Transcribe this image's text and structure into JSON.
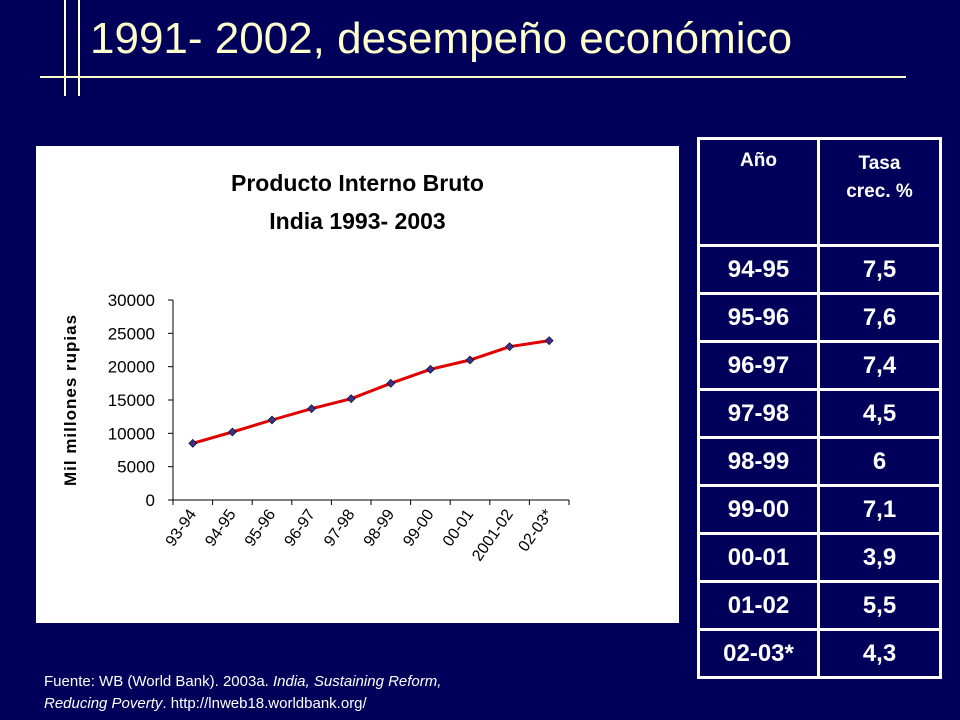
{
  "title": "1991- 2002, desempeño económico",
  "colors": {
    "background": "#00005a",
    "title": "#ffffcc",
    "line": "#e00000",
    "marker": "#3b2f8f"
  },
  "chart_data": {
    "type": "line",
    "title": "Producto Interno Bruto",
    "subtitle": "India 1993- 2003",
    "xlabel": "",
    "ylabel": "Mil millones rupias",
    "ylim": [
      0,
      30000
    ],
    "yticks": [
      "0",
      "5000",
      "10000",
      "15000",
      "20000",
      "25000",
      "30000"
    ],
    "categories": [
      "93-94",
      "94-95",
      "95-96",
      "96-97",
      "97-98",
      "98-99",
      "99-00",
      "00-01",
      "2001-02",
      "02-03*"
    ],
    "values": [
      8500,
      10200,
      12000,
      13700,
      15200,
      17500,
      19600,
      21000,
      23000,
      23900
    ],
    "grid": false,
    "legend": "none"
  },
  "table": {
    "headers": [
      "Año",
      "Tasa crec. %"
    ],
    "rows": [
      {
        "year": "94-95",
        "rate": "7,5"
      },
      {
        "year": "95-96",
        "rate": "7,6"
      },
      {
        "year": "96-97",
        "rate": "7,4"
      },
      {
        "year": "97-98",
        "rate": "4,5"
      },
      {
        "year": "98-99",
        "rate": "6"
      },
      {
        "year": "99-00",
        "rate": "7,1"
      },
      {
        "year": "00-01",
        "rate": "3,9"
      },
      {
        "year": "01-02",
        "rate": "5,5"
      },
      {
        "year": "02-03*",
        "rate": "4,3"
      }
    ]
  },
  "source": {
    "line1_prefix": "Fuente: WB (World Bank). 2003a. ",
    "line1_italic": "India, Sustaining Reform,",
    "line2_italic": "Reducing Poverty",
    "line2_suffix": ". http://lnweb18.worldbank.org/"
  }
}
